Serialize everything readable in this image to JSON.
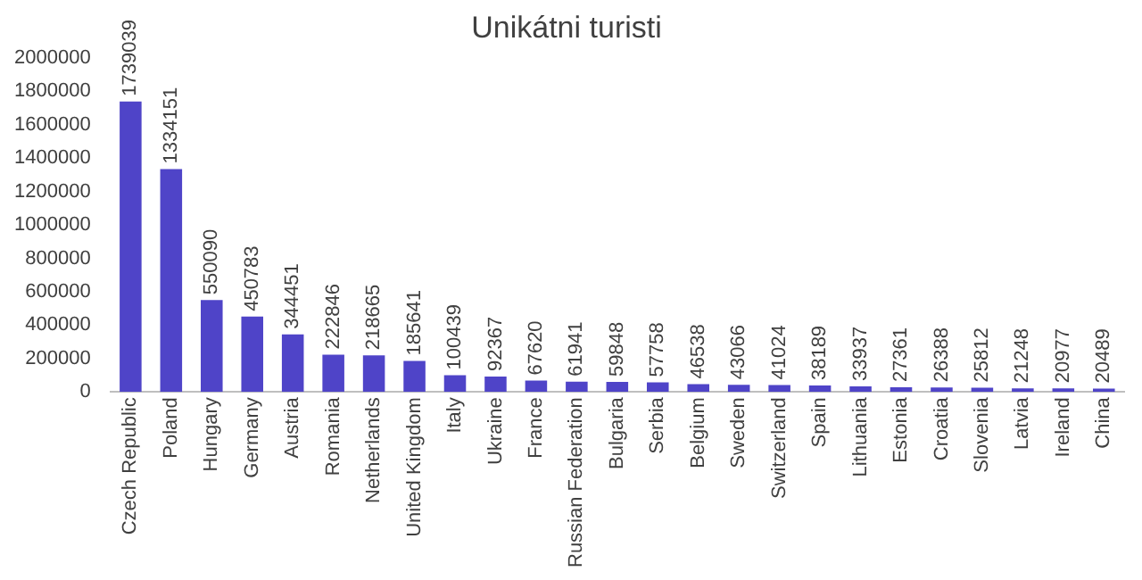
{
  "chart_data": {
    "type": "bar",
    "title": "Unikátni turisti",
    "categories": [
      "Czech Republic",
      "Poland",
      "Hungary",
      "Germany",
      "Austria",
      "Romania",
      "Netherlands",
      "United Kingdom",
      "Italy",
      "Ukraine",
      "France",
      "Russian Federation",
      "Bulgaria",
      "Serbia",
      "Belgium",
      "Sweden",
      "Switzerland",
      "Spain",
      "Lithuania",
      "Estonia",
      "Croatia",
      "Slovenia",
      "Latvia",
      "Ireland",
      "China"
    ],
    "values": [
      1739039,
      1334151,
      550090,
      450783,
      344451,
      222846,
      218665,
      185641,
      100439,
      92367,
      67620,
      61941,
      59848,
      57758,
      46538,
      43066,
      41024,
      38189,
      33937,
      27361,
      26388,
      25812,
      21248,
      20977,
      20489
    ],
    "color": "#4f44c8",
    "ylim": [
      0,
      2000000
    ],
    "yticks": [
      0,
      200000,
      400000,
      600000,
      800000,
      1000000,
      1200000,
      1400000,
      1600000,
      1800000,
      2000000
    ],
    "grid": false,
    "legend": false,
    "data_labels": true
  }
}
